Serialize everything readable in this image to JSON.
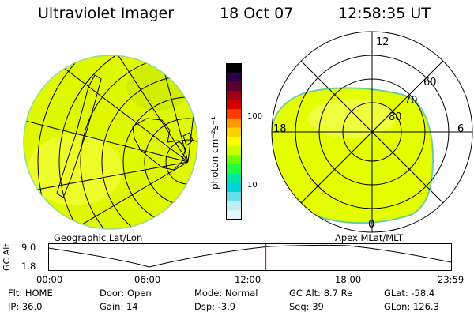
{
  "header": {
    "title": "Ultraviolet Imager",
    "date": "18 Oct 07",
    "time": "12:58:35 UT"
  },
  "left_panel": {
    "label": "Geographic Lat/Lon"
  },
  "right_panel": {
    "label": "Apex MLat/MLT",
    "mlt_labels": [
      "12",
      "6",
      "0",
      "18"
    ],
    "mlat_labels": [
      "60",
      "70",
      "80"
    ]
  },
  "colorbar": {
    "unit_label": "photon cm⁻²s⁻¹",
    "scale": "log",
    "ticks": [
      "100",
      "10"
    ],
    "colors": [
      "#000000",
      "#2a004a",
      "#5a0030",
      "#a0001a",
      "#d40000",
      "#ff3c00",
      "#ff9900",
      "#ffd000",
      "#ffff00",
      "#c8ff00",
      "#6cff00",
      "#1eff3c",
      "#00e6a0",
      "#00d4d4",
      "#66e0e8",
      "#c0eef2",
      "#e6f6f8"
    ]
  },
  "altitude_plot": {
    "y_label": "GC Alt",
    "y_ticks": [
      "9.0",
      "1.8"
    ],
    "x_ticks": [
      "00:00",
      "06:00",
      "12:00",
      "18:00",
      "23:59"
    ],
    "current_time_fraction": 0.54
  },
  "info": {
    "row1": [
      {
        "label": "Flt:",
        "value": "HOME"
      },
      {
        "label": "Door:",
        "value": "Open"
      },
      {
        "label": "Mode:",
        "value": "Normal"
      },
      {
        "label": "GC Alt:",
        "value": "8.7 Re"
      },
      {
        "label": "GLat:",
        "value": "-58.4"
      }
    ],
    "row2": [
      {
        "label": "IP:",
        "value": "36.0"
      },
      {
        "label": "Gain:",
        "value": "14"
      },
      {
        "label": "Dsp:",
        "value": "-3.9"
      },
      {
        "label": "Seq:",
        "value": "39"
      },
      {
        "label": "GLon:",
        "value": "126.3"
      }
    ]
  }
}
